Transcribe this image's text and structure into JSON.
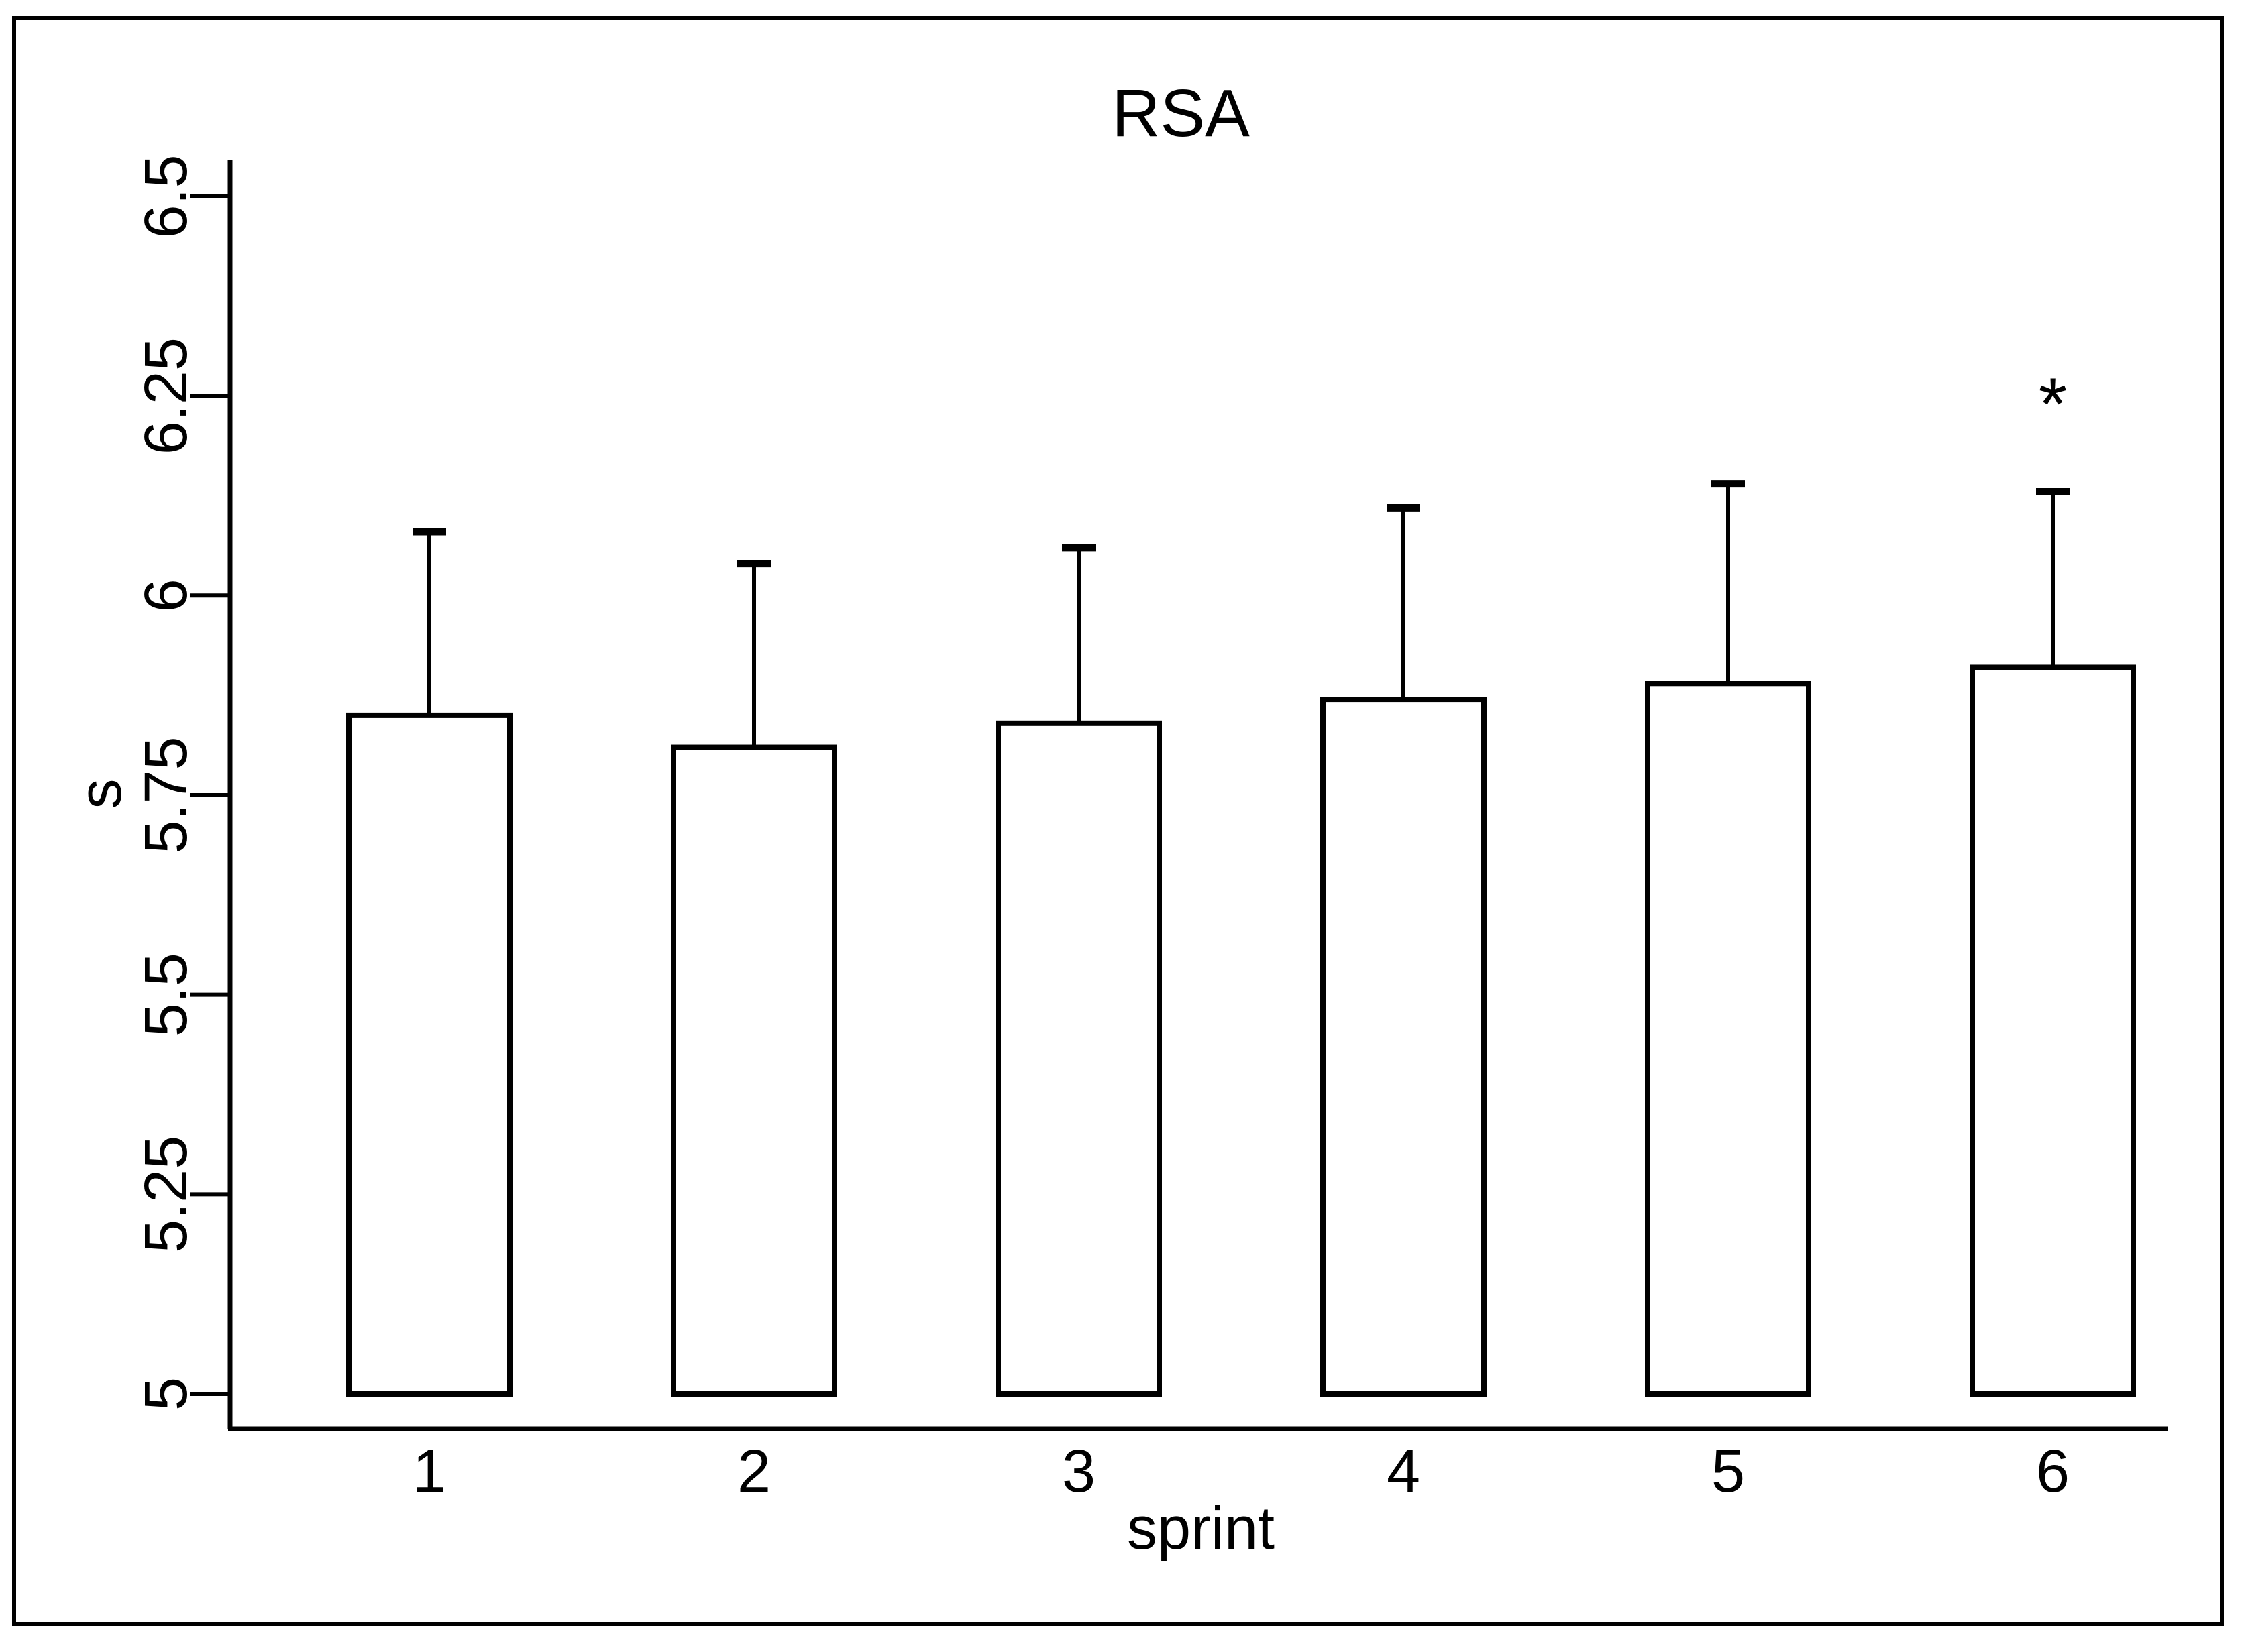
{
  "figure": {
    "background": "#ffffff",
    "border_color": "#000000",
    "ink_color": "#000000",
    "bar_fill": "#ffffff"
  },
  "chart_data": {
    "type": "bar",
    "title": "RSA",
    "xlabel": "sprint",
    "ylabel": "s",
    "categories": [
      "1",
      "2",
      "3",
      "4",
      "5",
      "6"
    ],
    "values": [
      5.85,
      5.81,
      5.84,
      5.87,
      5.89,
      5.91
    ],
    "error_upper": [
      6.08,
      6.04,
      6.06,
      6.11,
      6.14,
      6.13
    ],
    "ylim": [
      5,
      6.5
    ],
    "yticks": [
      5,
      5.25,
      5.5,
      5.75,
      6,
      6.25,
      6.5
    ],
    "ytick_labels": [
      "5",
      "5.25",
      "5.5",
      "5.75",
      "6",
      "6.25",
      "6.5"
    ],
    "grid": false,
    "legend": "none",
    "bar_border": "#000000",
    "annotations": [
      {
        "text": "*",
        "category": "6",
        "y": 6.24
      }
    ]
  }
}
